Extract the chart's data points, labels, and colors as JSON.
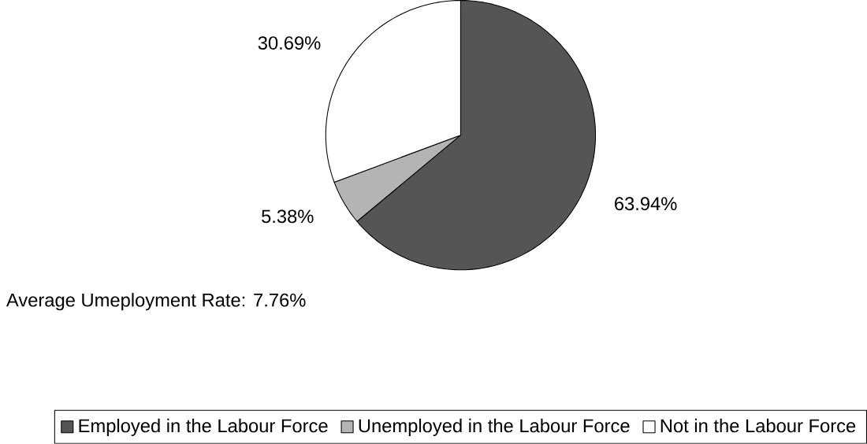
{
  "chart_data": {
    "type": "pie",
    "categories": [
      "Employed in the Labour Force",
      "Unemployed in the Labour Force",
      "Not in the Labour Force"
    ],
    "values": [
      63.94,
      5.38,
      30.69
    ],
    "colors": [
      "#555555",
      "#b4b4b4",
      "#ffffff"
    ],
    "value_labels": [
      "63.94%",
      "5.38%",
      "30.69%"
    ],
    "annotations": [
      "Average Umeployment Rate: 7.76%"
    ],
    "legend": "bottom"
  }
}
